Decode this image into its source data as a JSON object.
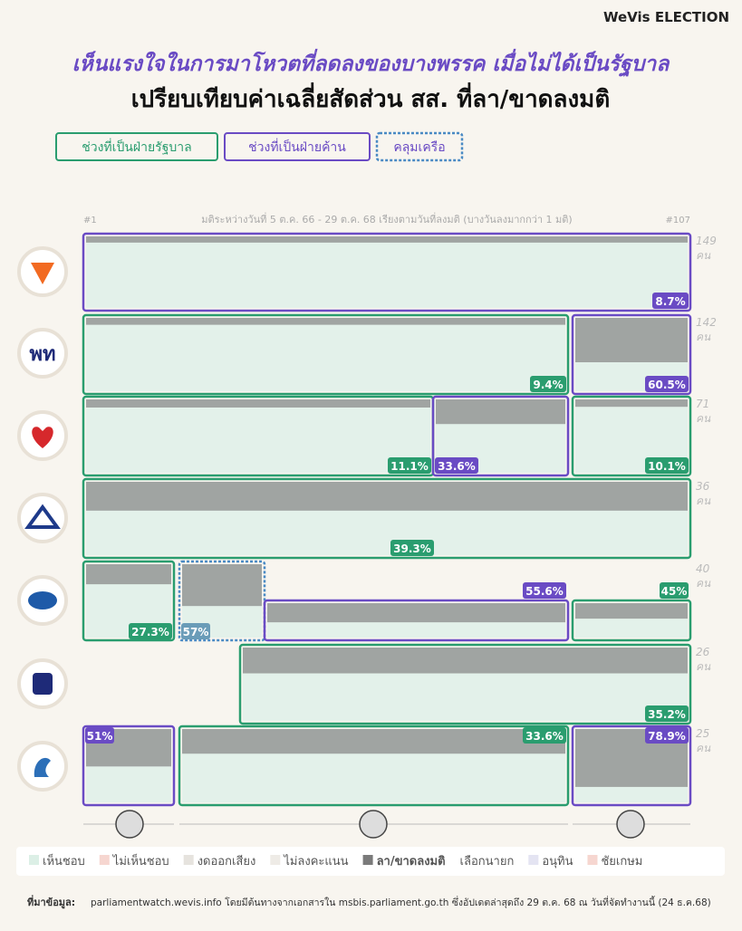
{
  "brand": "WeVis ELECTION",
  "title": "เห็นแรงใจในการมาโหวตที่ลดลงของบางพรรค เมื่อไม่ได้เป็นรัฐบาล",
  "subtitle": "เปรียบเทียบค่าเฉลี่ยสัดส่วน สส. ที่ลา/ขาดลงมติ",
  "tags": [
    "ช่วงที่เป็นฝ่ายรัฐบาล",
    "ช่วงที่เป็นฝ่ายค้าน",
    "คลุมเครือ"
  ],
  "axis_note": {
    "start": "#1",
    "text": "มติระหว่างวันที่ 5 ต.ค. 66 - 29 ต.ค. 68 เรียงตามวันที่ลงมติ (บางวันลงมากกว่า 1 มติ)",
    "end": "#107"
  },
  "unit": "คน",
  "logo_text": "พท",
  "rows": [
    {
      "seats": 149,
      "segments": [
        {
          "value": 8.7,
          "label": "8.7%"
        }
      ]
    },
    {
      "seats": 142,
      "segments": [
        {
          "value": 9.4,
          "label": "9.4%"
        },
        {
          "value": 60.5,
          "label": "60.5%"
        }
      ]
    },
    {
      "seats": 71,
      "segments": [
        {
          "value": 11.1,
          "label": "11.1%"
        },
        {
          "value": 33.6,
          "label": "33.6%"
        },
        {
          "value": 10.1,
          "label": "10.1%"
        }
      ]
    },
    {
      "seats": 36,
      "segments": [
        {
          "value": 39.3,
          "label": "39.3%"
        }
      ]
    },
    {
      "seats": 40,
      "segments": [
        {
          "value": 27.3,
          "label": "27.3%"
        },
        {
          "value": 57,
          "label": "57%"
        },
        {
          "value": 55.6,
          "label": "55.6%"
        },
        {
          "value": 45,
          "label": "45%"
        }
      ]
    },
    {
      "seats": 26,
      "segments": [
        {
          "value": 35.2,
          "label": "35.2%"
        }
      ]
    },
    {
      "seats": 25,
      "segments": [
        {
          "value": 51,
          "label": "51%"
        },
        {
          "value": 33.6,
          "label": "33.6%"
        },
        {
          "value": 78.9,
          "label": "78.9%"
        }
      ]
    }
  ],
  "legend": [
    {
      "name": "เห็นชอบ",
      "color": "#dcefe6"
    },
    {
      "name": "ไม่เห็นชอบ",
      "color": "#f6d6d0"
    },
    {
      "name": "งดออกเสียง",
      "color": "#e6e3de"
    },
    {
      "name": "ไม่ลงคะแนน",
      "color": "#eeebe6"
    },
    {
      "name": "ลา/ขาดลงมติ",
      "color": "#7a7a7a"
    },
    {
      "name": "เลือกนายก",
      "color": null
    },
    {
      "name": "อนุทิน",
      "color": "#e4e4f2"
    },
    {
      "name": "ชัยเกษม",
      "color": "#f6d6d0"
    }
  ],
  "source": {
    "label": "ที่มาข้อมูล:",
    "text": "parliamentwatch.wevis.info โดยมีต้นทางจากเอกสารใน msbis.parliament.go.th ซึ่งอัปเดตล่าสุดถึง 29 ต.ค. 68 ณ วันที่จัดทำงานนี้ (24 ธ.ค.68)"
  }
}
